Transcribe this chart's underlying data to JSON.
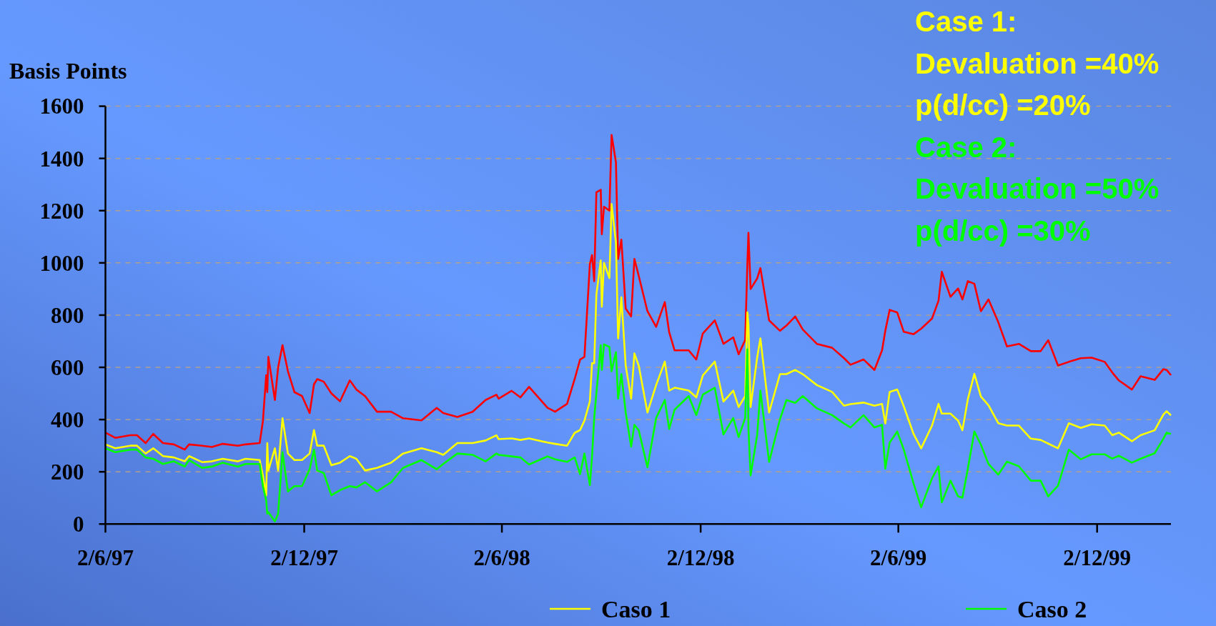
{
  "chart_data": {
    "type": "line",
    "ylabel": "Basis Points",
    "annotations": [
      "Case 1:",
      "Devaluation =40%",
      "p(d/cc) =20%",
      "Case 2:",
      "Devaluation =50%",
      "p(d/cc) =30%"
    ],
    "x": [
      "1997-06-02",
      "1997-06-11",
      "1997-06-25",
      "1997-07-01",
      "1997-07-09",
      "1997-07-16",
      "1997-07-25",
      "1997-08-04",
      "1997-08-14",
      "1997-08-18",
      "1997-08-30",
      "1997-09-08",
      "1997-09-18",
      "1997-10-02",
      "1997-10-09",
      "1997-10-22",
      "1997-10-25",
      "1997-10-28",
      "1997-10-29",
      "1997-10-30",
      "1997-11-05",
      "1997-11-08",
      "1997-11-12",
      "1997-11-17",
      "1997-11-23",
      "1997-11-30",
      "1997-12-07",
      "1997-12-11",
      "1997-12-14",
      "1997-12-20",
      "1997-12-27",
      "1998-01-04",
      "1998-01-13",
      "1998-01-19",
      "1998-01-27",
      "1998-02-07",
      "1998-02-20",
      "1998-03-03",
      "1998-03-20",
      "1998-04-03",
      "1998-04-09",
      "1998-04-22",
      "1998-05-06",
      "1998-05-18",
      "1998-05-28",
      "1998-05-30",
      "1998-06-11",
      "1998-06-19",
      "1998-06-27",
      "1998-07-14",
      "1998-07-21",
      "1998-08-01",
      "1998-08-08",
      "1998-08-13",
      "1998-08-17",
      "1998-08-22",
      "1998-08-24",
      "1998-08-26",
      "1998-08-28",
      "1998-09-01",
      "1998-09-02",
      "1998-09-04",
      "1998-09-09",
      "1998-09-11",
      "1998-09-15",
      "1998-09-17",
      "1998-09-20",
      "1998-09-24",
      "1998-09-29",
      "1998-10-02",
      "1998-10-06",
      "1998-10-14",
      "1998-10-22",
      "1998-10-30",
      "1998-11-03",
      "1998-11-08",
      "1998-11-21",
      "1998-11-28",
      "1998-12-04",
      "1998-12-15",
      "1998-12-23",
      "1999-01-01",
      "1999-01-06",
      "1999-01-12",
      "1999-01-14",
      "1999-01-15",
      "1999-01-17",
      "1999-01-23",
      "1999-01-26",
      "1999-02-03",
      "1999-02-13",
      "1999-02-19",
      "1999-02-27",
      "1999-03-06",
      "1999-03-19",
      "1999-04-02",
      "1999-04-13",
      "1999-04-19",
      "1999-05-01",
      "1999-05-11",
      "1999-05-18",
      "1999-05-21",
      "1999-05-25",
      "1999-06-01",
      "1999-06-07",
      "1999-06-16",
      "1999-06-23",
      "1999-07-03",
      "1999-07-09",
      "1999-07-12",
      "1999-07-20",
      "1999-07-27",
      "1999-07-31",
      "1999-08-05",
      "1999-08-11",
      "1999-08-17",
      "1999-08-24",
      "1999-09-02",
      "1999-09-10",
      "1999-09-21",
      "1999-10-02",
      "1999-10-11",
      "1999-10-18",
      "1999-10-27",
      "1999-11-06",
      "1999-11-17",
      "1999-11-27",
      "1999-12-09",
      "1999-12-16",
      "1999-12-22",
      "2000-01-03",
      "2000-01-11",
      "2000-01-24",
      "2000-02-01",
      "2000-02-04",
      "2000-02-08"
    ],
    "series": [
      {
        "color": "#ff0000",
        "values": [
          350,
          330,
          340,
          340,
          310,
          345,
          310,
          305,
          285,
          305,
          300,
          295,
          307,
          300,
          305,
          310,
          395,
          570,
          505,
          640,
          475,
          600,
          685,
          585,
          505,
          490,
          425,
          535,
          555,
          545,
          500,
          470,
          550,
          515,
          490,
          430,
          430,
          405,
          397,
          445,
          425,
          410,
          430,
          475,
          495,
          480,
          510,
          485,
          525,
          445,
          430,
          460,
          555,
          630,
          640,
          995,
          1030,
          930,
          1270,
          1280,
          1110,
          1215,
          1200,
          1490,
          1385,
          1015,
          1089,
          825,
          795,
          1015,
          950,
          815,
          755,
          850,
          735,
          665,
          665,
          630,
          730,
          780,
          690,
          715,
          650,
          705,
          995,
          1115,
          900,
          940,
          980,
          780,
          740,
          760,
          795,
          745,
          690,
          675,
          635,
          610,
          630,
          590,
          665,
          740,
          820,
          810,
          736,
          727,
          748,
          787,
          855,
          966,
          870,
          902,
          860,
          930,
          920,
          815,
          860,
          773,
          680,
          690,
          662,
          662,
          704,
          607,
          621,
          635,
          637,
          621,
          580,
          550,
          515,
          566,
          552,
          593,
          590,
          570
        ]
      },
      {
        "name": "Caso 1",
        "color": "#ffff00",
        "values": [
          305,
          290,
          300,
          300,
          270,
          290,
          260,
          255,
          240,
          260,
          237,
          240,
          250,
          240,
          250,
          245,
          185,
          110,
          310,
          205,
          290,
          205,
          405,
          270,
          245,
          245,
          270,
          360,
          300,
          300,
          225,
          235,
          260,
          250,
          205,
          215,
          235,
          270,
          290,
          275,
          265,
          310,
          310,
          320,
          340,
          325,
          328,
          322,
          328,
          312,
          307,
          300,
          349,
          360,
          396,
          470,
          616,
          616,
          879,
          1010,
          832,
          1000,
          942,
          1225,
          1078,
          711,
          868,
          606,
          480,
          653,
          606,
          427,
          532,
          622,
          511,
          522,
          511,
          485,
          569,
          622,
          469,
          511,
          448,
          490,
          811,
          763,
          448,
          637,
          711,
          427,
          574,
          574,
          590,
          574,
          532,
          506,
          453,
          459,
          465,
          453,
          460,
          385,
          506,
          515,
          451,
          345,
          290,
          377,
          460,
          423,
          423,
          396,
          359,
          478,
          575,
          488,
          455,
          386,
          377,
          377,
          327,
          322,
          308,
          290,
          386,
          368,
          382,
          377,
          340,
          350,
          317,
          340,
          359,
          419,
          432,
          416
        ]
      },
      {
        "name": "Caso 2",
        "color": "#00ff00",
        "values": [
          290,
          275,
          285,
          285,
          255,
          250,
          230,
          240,
          220,
          245,
          215,
          220,
          235,
          220,
          230,
          230,
          145,
          90,
          40,
          45,
          10,
          40,
          275,
          125,
          145,
          145,
          210,
          285,
          205,
          195,
          110,
          130,
          145,
          140,
          160,
          125,
          160,
          215,
          245,
          210,
          230,
          270,
          265,
          240,
          270,
          265,
          259,
          255,
          228,
          259,
          248,
          238,
          255,
          191,
          270,
          149,
          259,
          406,
          501,
          685,
          590,
          688,
          678,
          585,
          658,
          480,
          574,
          427,
          296,
          380,
          359,
          217,
          406,
          475,
          364,
          438,
          490,
          417,
          496,
          522,
          343,
          406,
          333,
          406,
          669,
          364,
          186,
          340,
          511,
          238,
          401,
          475,
          464,
          490,
          443,
          417,
          385,
          370,
          417,
          370,
          380,
          212,
          312,
          354,
          285,
          156,
          64,
          175,
          221,
          83,
          166,
          106,
          101,
          212,
          354,
          304,
          230,
          189,
          239,
          221,
          166,
          166,
          106,
          147,
          285,
          248,
          267,
          267,
          250,
          262,
          235,
          250,
          271,
          327,
          350,
          345
        ]
      }
    ],
    "xlim": [
      "1997-06-02",
      "2000-02-08"
    ],
    "xticks": [
      {
        "value": "1997-06-02",
        "label": "2/6/97"
      },
      {
        "value": "1997-12-02",
        "label": "2/12/97"
      },
      {
        "value": "1998-06-02",
        "label": "2/6/98"
      },
      {
        "value": "1998-12-02",
        "label": "2/12/98"
      },
      {
        "value": "1999-06-02",
        "label": "2/6/99"
      },
      {
        "value": "1999-12-02",
        "label": "2/12/99"
      }
    ],
    "ylim": [
      0,
      1600
    ],
    "yticks": [
      0,
      200,
      400,
      600,
      800,
      1000,
      1200,
      1400,
      1600
    ],
    "grid": "y",
    "legend": "bottom"
  }
}
